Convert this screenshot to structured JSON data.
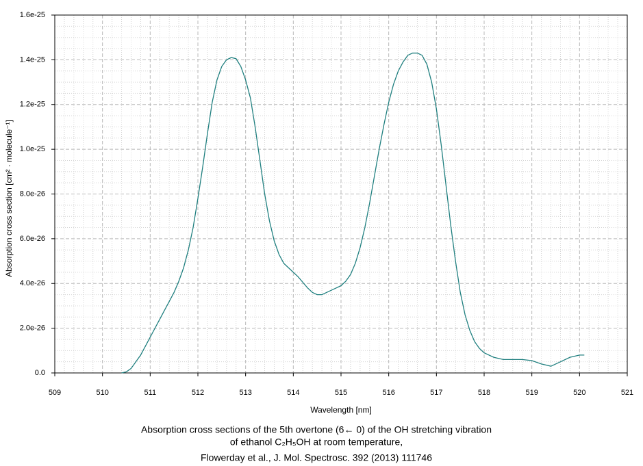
{
  "chart_data": {
    "type": "line",
    "xlabel": "Wavelength [nm]",
    "ylabel": "Absorption cross section [cm² · molecule⁻¹]",
    "caption": [
      "Absorption cross sections of the 5th overtone (6← 0) of the OH stretching vibration",
      "of ethanol C₂H₅OH at room temperature,",
      "Flowerday et al., J. Mol. Spectrosc. 392 (2013) 111746"
    ],
    "xlim": [
      509,
      521
    ],
    "xticks": [
      509,
      510,
      511,
      512,
      513,
      514,
      515,
      516,
      517,
      518,
      519,
      520,
      521
    ],
    "ylim": [
      0,
      1.6e-25
    ],
    "yticks": [
      {
        "value": 0,
        "label": "0.0"
      },
      {
        "value": 2e-26,
        "label": "2.0e-26"
      },
      {
        "value": 4e-26,
        "label": "4.0e-26"
      },
      {
        "value": 6e-26,
        "label": "6.0e-26"
      },
      {
        "value": 8e-26,
        "label": "8.0e-26"
      },
      {
        "value": 1e-25,
        "label": "1.0e-25"
      },
      {
        "value": 1.2e-25,
        "label": "1.2e-25"
      },
      {
        "value": 1.4e-25,
        "label": "1.4e-25"
      },
      {
        "value": 1.6e-25,
        "label": "1.6e-25"
      }
    ],
    "grid": true,
    "color": "#1f7f7f",
    "x": [
      510.4,
      510.5,
      510.6,
      510.7,
      510.8,
      510.9,
      511.0,
      511.1,
      511.2,
      511.3,
      511.4,
      511.5,
      511.6,
      511.7,
      511.8,
      511.9,
      512.0,
      512.1,
      512.2,
      512.3,
      512.4,
      512.5,
      512.6,
      512.7,
      512.8,
      512.9,
      513.0,
      513.1,
      513.2,
      513.3,
      513.4,
      513.5,
      513.6,
      513.7,
      513.8,
      513.9,
      514.0,
      514.1,
      514.2,
      514.3,
      514.4,
      514.5,
      514.6,
      514.7,
      514.8,
      514.9,
      515.0,
      515.1,
      515.2,
      515.3,
      515.4,
      515.5,
      515.6,
      515.7,
      515.8,
      515.9,
      516.0,
      516.1,
      516.2,
      516.3,
      516.4,
      516.5,
      516.6,
      516.7,
      516.8,
      516.9,
      517.0,
      517.1,
      517.2,
      517.3,
      517.4,
      517.5,
      517.6,
      517.7,
      517.8,
      517.9,
      518.0,
      518.2,
      518.4,
      518.6,
      518.8,
      519.0,
      519.2,
      519.4,
      519.6,
      519.8,
      520.0,
      520.1
    ],
    "values": [
      0,
      5e-28,
      2e-27,
      5e-27,
      8e-27,
      1.2e-26,
      1.6e-26,
      2e-26,
      2.4e-26,
      2.8e-26,
      3.2e-26,
      3.6e-26,
      4.1e-26,
      4.7e-26,
      5.5e-26,
      6.5e-26,
      7.8e-26,
      9.2e-26,
      1.07e-25,
      1.21e-25,
      1.31e-25,
      1.37e-25,
      1.4e-25,
      1.41e-25,
      1.405e-25,
      1.37e-25,
      1.31e-25,
      1.23e-25,
      1.1e-25,
      9.5e-26,
      8e-26,
      6.8e-26,
      5.9e-26,
      5.3e-26,
      4.9e-26,
      4.7e-26,
      4.5e-26,
      4.3e-26,
      4.05e-26,
      3.8e-26,
      3.6e-26,
      3.5e-26,
      3.5e-26,
      3.6e-26,
      3.7e-26,
      3.8e-26,
      3.9e-26,
      4.1e-26,
      4.4e-26,
      4.9e-26,
      5.6e-26,
      6.5e-26,
      7.6e-26,
      8.8e-26,
      1e-25,
      1.11e-25,
      1.21e-25,
      1.29e-25,
      1.35e-25,
      1.39e-25,
      1.42e-25,
      1.43e-25,
      1.43e-25,
      1.42e-25,
      1.38e-25,
      1.3e-25,
      1.18e-25,
      1.02e-25,
      8.4e-26,
      6.6e-26,
      5e-26,
      3.6e-26,
      2.6e-26,
      1.9e-26,
      1.4e-26,
      1.1e-26,
      9e-27,
      7e-27,
      6e-27,
      6e-27,
      6e-27,
      5.5e-27,
      4e-27,
      3e-27,
      5e-27,
      7e-27,
      8e-27,
      8e-27
    ]
  }
}
